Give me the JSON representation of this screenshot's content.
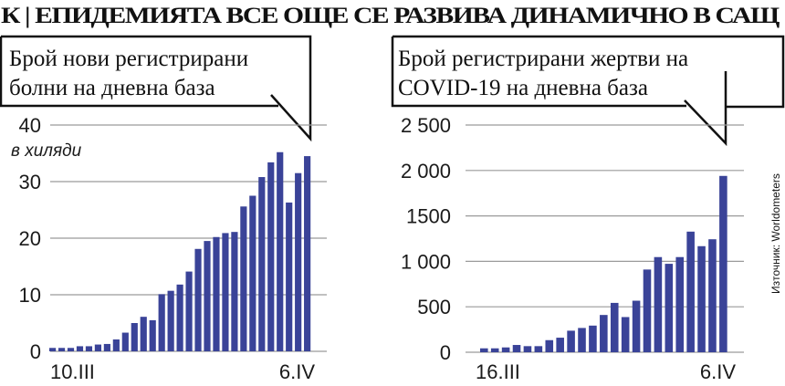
{
  "headline": "К | ЕПИДЕМИЯТА ВСЕ ОЩЕ СЕ РАЗВИВА ДИНАМИЧНО В САЩ",
  "source": "Източник:  Worldometers",
  "colors": {
    "bar": "#3a4398",
    "grid": "#9a9a9a",
    "text": "#111111"
  },
  "chart_data": [
    {
      "type": "bar",
      "title": "Брой нови регистрирани болни на дневна база",
      "title_lines": [
        "Брой нови регистрирани",
        "болни на дневна база"
      ],
      "ylabel": "в хиляди",
      "xlabel": "",
      "x_start_label": "10.III",
      "x_end_label": "6.IV",
      "ylim": [
        0,
        40
      ],
      "yticks": [
        0,
        10,
        20,
        30,
        40
      ],
      "ytick_labels": [
        "0",
        "10",
        "20",
        "30",
        "40"
      ],
      "grid": true,
      "values": [
        0.6,
        0.6,
        0.6,
        0.9,
        0.9,
        1.2,
        1.3,
        2.1,
        3.3,
        5.0,
        6.1,
        5.5,
        10.1,
        10.7,
        11.8,
        14.1,
        18.1,
        19.5,
        20.2,
        20.9,
        21.1,
        25.6,
        27.5,
        30.8,
        33.4,
        35.2,
        26.3,
        31.5,
        34.5
      ]
    },
    {
      "type": "bar",
      "title": "Брой регистрирани жертви на COVID-19 на дневна база",
      "title_lines": [
        "Брой регистрирани жертви на",
        "COVID-19 на дневна база"
      ],
      "ylabel": "",
      "xlabel": "",
      "x_start_label": "16.III",
      "x_end_label": "6.IV",
      "ylim": [
        0,
        2500
      ],
      "yticks": [
        0,
        500,
        1000,
        1500,
        2000,
        2500
      ],
      "ytick_labels": [
        "0",
        "500",
        "1 000",
        "1500",
        "2 000",
        "2 500"
      ],
      "grid": true,
      "values": [
        43,
        43,
        53,
        80,
        67,
        67,
        133,
        160,
        237,
        267,
        293,
        410,
        543,
        387,
        567,
        910,
        1047,
        973,
        1047,
        1327,
        1167,
        1243,
        1940
      ]
    }
  ]
}
